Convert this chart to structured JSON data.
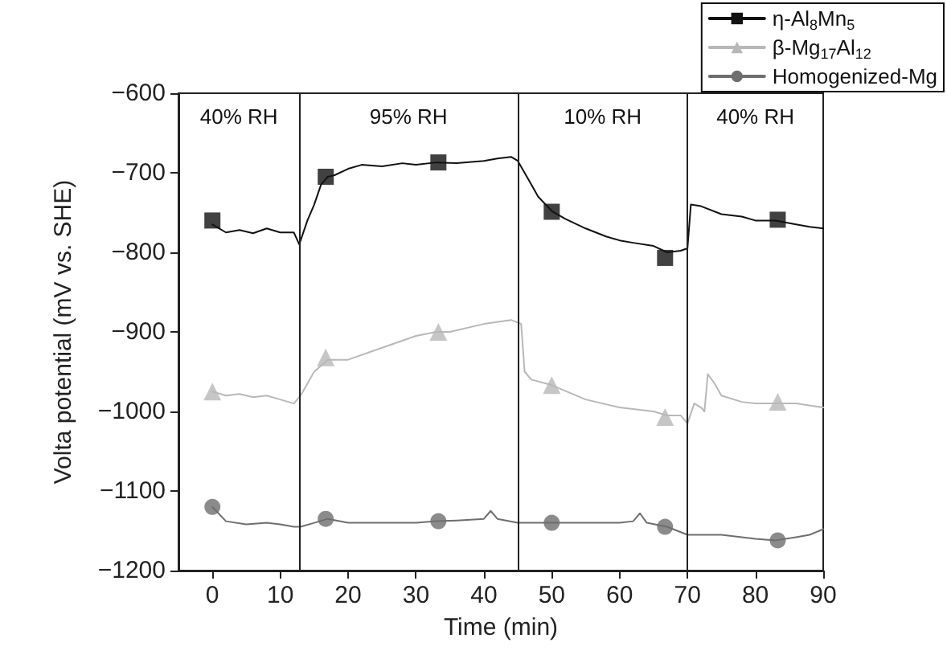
{
  "chart_data": {
    "type": "line",
    "xlabel": "Time (min)",
    "ylabel": "Volta potential (mV vs. SHE)",
    "xlim": [
      -5,
      90
    ],
    "xticks": [
      0,
      10,
      20,
      30,
      40,
      50,
      60,
      70,
      80,
      90
    ],
    "ylim": [
      -1200,
      -600
    ],
    "yticks": [
      -1200,
      -1100,
      -1000,
      -900,
      -800,
      -700,
      -600
    ],
    "grid": false,
    "legend": "top right",
    "line_style": "solid",
    "series": [
      {
        "name": "η-Al$_{8}$Mn$_{5}$",
        "color": "#111111",
        "x": [
          0,
          2,
          4,
          6,
          8,
          10,
          12,
          12.8,
          14,
          15,
          16,
          17,
          18,
          20,
          22,
          25,
          28,
          30,
          33,
          36,
          40,
          42,
          44,
          45,
          46,
          47,
          48,
          50,
          52,
          55,
          58,
          60,
          62,
          65,
          67,
          69,
          70,
          70.5,
          72,
          75,
          78,
          80,
          83,
          86,
          88,
          90
        ],
        "values": [
          -765,
          -775,
          -772,
          -776,
          -770,
          -775,
          -775,
          -790,
          -760,
          -740,
          -715,
          -705,
          -703,
          -695,
          -690,
          -692,
          -688,
          -690,
          -687,
          -688,
          -685,
          -682,
          -680,
          -685,
          -700,
          -715,
          -730,
          -748,
          -758,
          -770,
          -780,
          -785,
          -788,
          -792,
          -800,
          -798,
          -795,
          -740,
          -742,
          -752,
          -755,
          -760,
          -760,
          -765,
          -768,
          -770
        ]
      },
      {
        "name": "β-Mg$_{17}$Al$_{12}$",
        "color": "#b8b8b8",
        "x": [
          0,
          2,
          4,
          6,
          8,
          10,
          12,
          13,
          15,
          17,
          20,
          25,
          30,
          33,
          35,
          40,
          44,
          45.5,
          46,
          47,
          50,
          55,
          60,
          65,
          67,
          69,
          70,
          71,
          72,
          72.5,
          73,
          74,
          75,
          78,
          80,
          83,
          86,
          90
        ],
        "values": [
          -975,
          -980,
          -978,
          -982,
          -980,
          -985,
          -990,
          -980,
          -950,
          -935,
          -935,
          -920,
          -905,
          -900,
          -900,
          -890,
          -885,
          -890,
          -950,
          -960,
          -967,
          -985,
          -995,
          -1000,
          -1005,
          -1005,
          -1015,
          -990,
          -995,
          -1000,
          -953,
          -965,
          -980,
          -988,
          -990,
          -990,
          -990,
          -995
        ]
      },
      {
        "name": "Homogenized-Mg",
        "color": "#6e6e6e",
        "x": [
          0,
          2,
          5,
          8,
          10,
          12,
          13,
          15,
          17,
          20,
          25,
          30,
          33,
          36,
          40,
          41,
          42,
          45,
          48,
          50,
          55,
          60,
          62,
          63,
          64,
          67,
          70,
          73,
          75,
          80,
          83,
          86,
          88,
          90
        ],
        "values": [
          -1120,
          -1138,
          -1142,
          -1140,
          -1142,
          -1145,
          -1145,
          -1140,
          -1135,
          -1140,
          -1140,
          -1140,
          -1138,
          -1137,
          -1135,
          -1125,
          -1135,
          -1140,
          -1140,
          -1140,
          -1140,
          -1140,
          -1138,
          -1128,
          -1140,
          -1145,
          -1155,
          -1155,
          -1155,
          -1160,
          -1162,
          -1158,
          -1155,
          -1148
        ]
      },
      {
        "type": "scatter",
        "color": "#111111",
        "marker": "square",
        "x": [
          0,
          16.7,
          33.3,
          50,
          66.7,
          83.3
        ],
        "values": [
          -760,
          -705,
          -687,
          -749,
          -807,
          -759
        ]
      },
      {
        "type": "scatter",
        "color": "#b8b8b8",
        "marker": "triangle",
        "x": [
          0,
          16.7,
          33.3,
          50,
          66.7,
          83.3
        ],
        "values": [
          -975,
          -932,
          -900,
          -967,
          -1007,
          -988
        ]
      },
      {
        "type": "scatter",
        "color": "#6e6e6e",
        "marker": "circle",
        "x": [
          0,
          16.7,
          33.3,
          50,
          66.7,
          83.3
        ],
        "values": [
          -1120,
          -1135,
          -1138,
          -1140,
          -1145,
          -1162
        ]
      }
    ],
    "ref_lines": [
      {
        "axis": "x",
        "value": 12.8,
        "color": "#222222"
      },
      {
        "axis": "x",
        "value": 45,
        "color": "#222222"
      },
      {
        "axis": "x",
        "value": 70,
        "color": "#222222"
      }
    ],
    "annotations": [
      "40% RH",
      "95% RH",
      "10% RH",
      "40% RH"
    ]
  }
}
